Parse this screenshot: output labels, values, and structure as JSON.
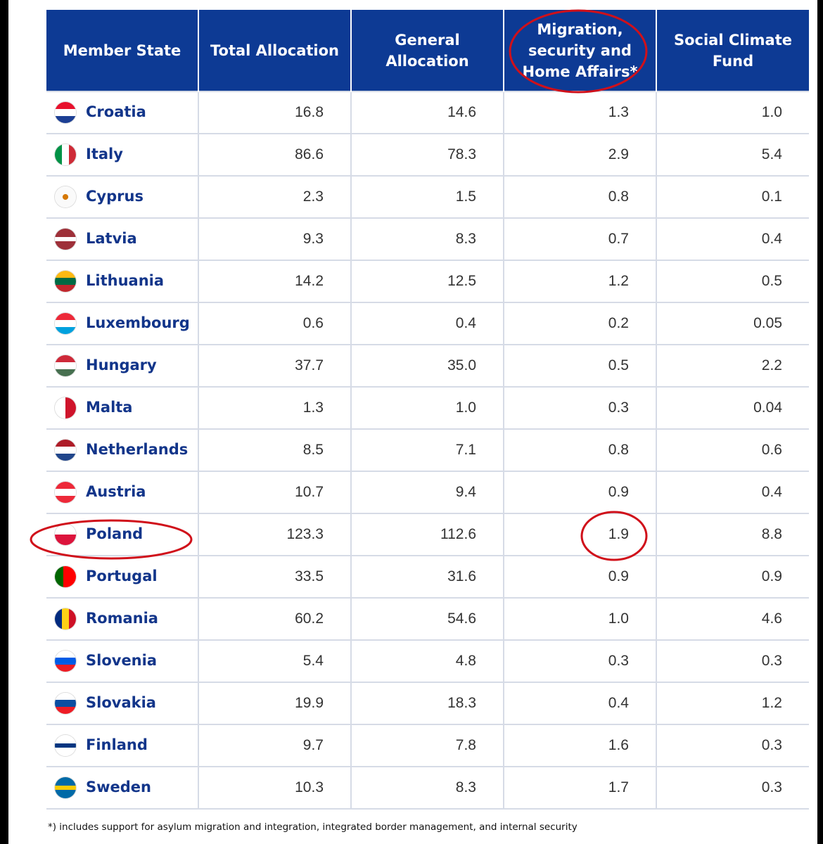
{
  "table": {
    "header": [
      "Member State",
      "Total Allocation",
      "General Allocation",
      "Migration, security and Home Affairs*",
      "Social Climate Fund"
    ],
    "rows": [
      [
        "Croatia",
        "16.8",
        "14.6",
        "1.3",
        "1.0"
      ],
      [
        "Italy",
        "86.6",
        "78.3",
        "2.9",
        "5.4"
      ],
      [
        "Cyprus",
        "2.3",
        "1.5",
        "0.8",
        "0.1"
      ],
      [
        "Latvia",
        "9.3",
        "8.3",
        "0.7",
        "0.4"
      ],
      [
        "Lithuania",
        "14.2",
        "12.5",
        "1.2",
        "0.5"
      ],
      [
        "Luxembourg",
        "0.6",
        "0.4",
        "0.2",
        "0.05"
      ],
      [
        "Hungary",
        "37.7",
        "35.0",
        "0.5",
        "2.2"
      ],
      [
        "Malta",
        "1.3",
        "1.0",
        "0.3",
        "0.04"
      ],
      [
        "Netherlands",
        "8.5",
        "7.1",
        "0.8",
        "0.6"
      ],
      [
        "Austria",
        "10.7",
        "9.4",
        "0.9",
        "0.4"
      ],
      [
        "Poland",
        "123.3",
        "112.6",
        "1.9",
        "8.8"
      ],
      [
        "Portugal",
        "33.5",
        "31.6",
        "0.9",
        "0.9"
      ],
      [
        "Romania",
        "60.2",
        "54.6",
        "1.0",
        "4.6"
      ],
      [
        "Slovenia",
        "5.4",
        "4.8",
        "0.3",
        "0.3"
      ],
      [
        "Slovakia",
        "19.9",
        "18.3",
        "0.4",
        "1.2"
      ],
      [
        "Finland",
        "9.7",
        "7.8",
        "1.6",
        "0.3"
      ],
      [
        "Sweden",
        "10.3",
        "8.3",
        "1.7",
        "0.3"
      ]
    ]
  },
  "footnote": "*) includes support for asylum migration and integration, integrated border management, and internal security"
}
